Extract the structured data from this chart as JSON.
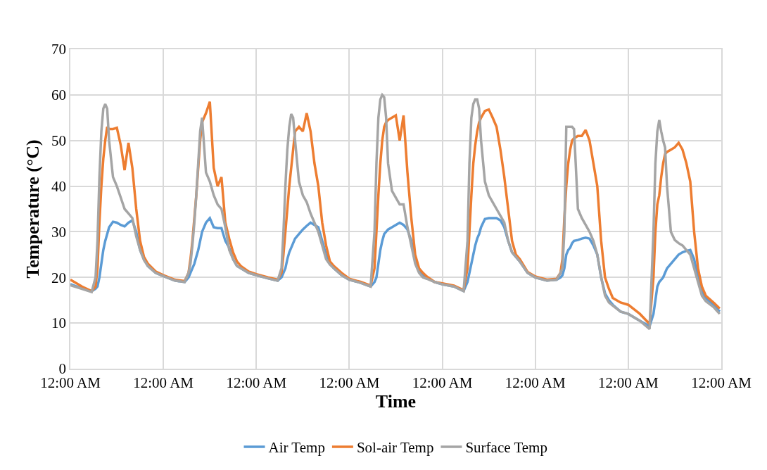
{
  "chart_data": {
    "type": "line",
    "xlabel": "Time",
    "ylabel": "Temperature (°C)",
    "x": [
      "--01-01T00:00",
      "--01-01T03:00",
      "--01-01T05:30",
      "--01-01T06:30",
      "--01-01T07:00",
      "--01-01T07:30",
      "--01-01T08:00",
      "--01-01T08:30",
      "--01-01T09:00",
      "--01-01T09:30",
      "--01-01T10:00",
      "--01-01T11:00",
      "--01-01T12:00",
      "--01-01T13:00",
      "--01-01T14:00",
      "--01-01T15:00",
      "--01-01T16:00",
      "--01-01T17:00",
      "--01-01T18:00",
      "--01-01T19:00",
      "--01-01T20:00",
      "--01-01T22:00",
      "--01-02T00:00",
      "--01-02T03:00",
      "--01-02T05:30",
      "--01-02T06:30",
      "--01-02T07:00",
      "--01-02T07:30",
      "--01-02T08:00",
      "--01-02T08:30",
      "--01-02T09:00",
      "--01-02T09:30",
      "--01-02T10:00",
      "--01-02T11:00",
      "--01-02T12:00",
      "--01-02T13:00",
      "--01-02T14:00",
      "--01-02T15:00",
      "--01-02T16:00",
      "--01-02T17:00",
      "--01-02T18:00",
      "--01-02T19:00",
      "--01-02T20:00",
      "--01-02T22:00",
      "--01-03T00:00",
      "--01-03T03:00",
      "--01-03T05:30",
      "--01-03T06:30",
      "--01-03T07:00",
      "--01-03T07:30",
      "--01-03T08:00",
      "--01-03T08:30",
      "--01-03T09:00",
      "--01-03T09:30",
      "--01-03T10:00",
      "--01-03T11:00",
      "--01-03T12:00",
      "--01-03T13:00",
      "--01-03T14:00",
      "--01-03T15:00",
      "--01-03T16:00",
      "--01-03T17:00",
      "--01-03T18:00",
      "--01-03T19:00",
      "--01-03T20:00",
      "--01-03T22:00",
      "--01-04T00:00",
      "--01-04T03:00",
      "--01-04T05:30",
      "--01-04T06:30",
      "--01-04T07:00",
      "--01-04T07:30",
      "--01-04T08:00",
      "--01-04T08:30",
      "--01-04T09:00",
      "--01-04T09:30",
      "--01-04T10:00",
      "--01-04T11:00",
      "--01-04T12:00",
      "--01-04T13:00",
      "--01-04T14:00",
      "--01-04T15:00",
      "--01-04T16:00",
      "--01-04T17:00",
      "--01-04T18:00",
      "--01-04T19:00",
      "--01-04T20:00",
      "--01-04T22:00",
      "--01-05T00:00",
      "--01-05T03:00",
      "--01-05T05:30",
      "--01-05T06:30",
      "--01-05T07:00",
      "--01-05T07:30",
      "--01-05T08:00",
      "--01-05T08:30",
      "--01-05T09:00",
      "--01-05T09:30",
      "--01-05T10:00",
      "--01-05T11:00",
      "--01-05T12:00",
      "--01-05T13:00",
      "--01-05T14:00",
      "--01-05T15:00",
      "--01-05T16:00",
      "--01-05T17:00",
      "--01-05T18:00",
      "--01-05T19:00",
      "--01-05T20:00",
      "--01-05T22:00",
      "--01-06T00:00",
      "--01-06T03:00",
      "--01-06T05:30",
      "--01-06T06:30",
      "--01-06T07:00",
      "--01-06T07:30",
      "--01-06T08:00",
      "--01-06T08:30",
      "--01-06T09:00",
      "--01-06T09:30",
      "--01-06T10:00",
      "--01-06T11:00",
      "--01-06T12:00",
      "--01-06T13:00",
      "--01-06T14:00",
      "--01-06T15:00",
      "--01-06T16:00",
      "--01-06T17:00",
      "--01-06T18:00",
      "--01-06T19:00",
      "--01-06T20:00",
      "--01-06T22:00",
      "--01-07T00:00",
      "--01-07T03:00",
      "--01-07T05:30",
      "--01-07T06:30",
      "--01-07T07:00",
      "--01-07T07:30",
      "--01-07T08:00",
      "--01-07T08:30",
      "--01-07T09:00",
      "--01-07T09:30",
      "--01-07T10:00",
      "--01-07T11:00",
      "--01-07T12:00",
      "--01-07T13:00",
      "--01-07T14:00",
      "--01-07T15:00",
      "--01-07T16:00",
      "--01-07T17:00",
      "--01-07T18:00",
      "--01-07T19:00",
      "--01-07T20:00",
      "--01-07T22:00",
      "--01-07T23:36"
    ],
    "series": [
      {
        "name": "Air Temp",
        "color": "#5b9bd5",
        "values": [
          18.5,
          17.6,
          17,
          17.5,
          18,
          20,
          23,
          26,
          28,
          29.5,
          31,
          32.2,
          32,
          31.5,
          31.2,
          32,
          32.5,
          30,
          26,
          24,
          22.5,
          21,
          20.3,
          19.3,
          19,
          20,
          21,
          22,
          23,
          24.5,
          26,
          28,
          30,
          32,
          33,
          31,
          30.8,
          30.8,
          28,
          26.5,
          24,
          22.5,
          22,
          21,
          20.5,
          19.8,
          19.3,
          20,
          21,
          22,
          24,
          25.5,
          26.5,
          27.5,
          28.5,
          29.5,
          30.5,
          31.3,
          32,
          31.5,
          31,
          28,
          25,
          23,
          22,
          20.5,
          19.5,
          18.8,
          18,
          19,
          20,
          23,
          26,
          28,
          29.5,
          30,
          30.5,
          31,
          31.5,
          32,
          31.5,
          30.5,
          28,
          24,
          21.5,
          20.5,
          20,
          19,
          18.5,
          18,
          17,
          19,
          21,
          23,
          25,
          27,
          28.5,
          29.5,
          31,
          32.8,
          33,
          33,
          33,
          32.5,
          31,
          28,
          25.5,
          24.5,
          23.5,
          21,
          20,
          19.3,
          19.5,
          20,
          20.5,
          22,
          25,
          26,
          26.5,
          27.5,
          28,
          28.2,
          28.5,
          28.7,
          28.5,
          27,
          25,
          20,
          16.5,
          15,
          14,
          12.5,
          12,
          10.5,
          9.3,
          12,
          15,
          18,
          19,
          19.5,
          20,
          21,
          22,
          23,
          24,
          25,
          25.5,
          25.8,
          26,
          24,
          20,
          17,
          15.5,
          14,
          12.5
        ]
      },
      {
        "name": "Sol-air Temp",
        "color": "#ed7d31",
        "values": [
          19.5,
          18,
          17,
          18,
          22,
          32,
          40,
          46,
          50,
          53,
          52.5,
          52.5,
          52.8,
          49,
          43.5,
          49.5,
          44,
          35,
          28,
          24.5,
          23,
          21.3,
          20.5,
          19.5,
          19.2,
          21,
          24,
          28,
          33,
          38,
          44,
          50,
          54,
          56,
          58.5,
          44,
          40,
          42,
          32,
          28.5,
          25.5,
          23.5,
          22.5,
          21.3,
          20.7,
          20,
          19.5,
          21,
          25,
          30,
          35,
          40,
          44,
          48,
          52,
          53,
          52,
          56,
          52,
          45,
          40,
          32,
          27,
          23.5,
          22.5,
          21,
          19.7,
          19,
          18.2,
          22,
          30,
          38,
          45,
          50,
          53,
          54,
          54.5,
          55,
          55.5,
          50,
          55.5,
          43,
          33,
          25,
          22,
          21,
          20.2,
          19,
          18.7,
          18.2,
          17.2,
          22,
          30,
          38,
          45,
          49,
          52,
          54,
          55,
          56.5,
          56.8,
          55,
          53,
          48,
          42,
          35,
          28,
          25,
          24,
          21.2,
          20.2,
          19.5,
          19.7,
          21,
          24,
          33,
          40,
          45,
          48,
          50,
          50.5,
          51,
          51,
          52.3,
          50,
          45,
          40,
          28,
          20,
          17.5,
          15.5,
          14.5,
          14,
          12,
          9.8,
          20,
          30,
          36,
          38,
          42,
          45,
          47,
          47.5,
          48,
          48.5,
          49.5,
          48,
          45,
          41,
          30,
          22,
          18,
          16,
          14.5,
          13.2
        ]
      },
      {
        "name": "Surface Temp",
        "color": "#a5a5a5",
        "values": [
          18.3,
          17.5,
          16.8,
          20,
          28,
          42,
          52,
          57,
          58,
          57,
          50,
          42,
          40,
          37.5,
          35,
          34,
          33,
          29,
          26,
          23.8,
          22.5,
          21,
          20.3,
          19.3,
          19,
          21,
          23,
          27,
          32,
          38,
          45,
          52,
          55,
          43,
          41,
          38,
          36,
          35,
          31,
          26,
          24,
          22.5,
          22,
          21,
          20.5,
          19.8,
          19.3,
          22,
          30,
          40,
          48,
          53,
          55.8,
          55,
          50,
          41,
          38,
          36.5,
          34,
          32,
          30,
          27,
          24,
          22.8,
          22,
          20.5,
          19.5,
          18.8,
          18,
          30,
          45,
          55,
          59,
          60,
          59.5,
          55,
          45,
          39,
          37.5,
          36,
          36,
          31,
          27,
          23,
          21,
          20,
          19.7,
          19,
          18.5,
          18,
          17,
          28,
          45,
          55,
          58,
          59,
          59,
          57,
          50,
          41,
          38,
          36.5,
          35,
          33.5,
          32,
          28,
          25.5,
          24.5,
          23.5,
          21,
          20,
          19.3,
          19.5,
          21,
          22,
          30,
          53,
          53,
          53,
          53,
          52.5,
          35,
          33,
          31.5,
          30,
          28,
          25,
          20,
          16,
          14.5,
          13.8,
          12.5,
          12,
          10.5,
          8.7,
          30,
          45,
          52,
          54.5,
          52,
          50,
          48.5,
          40,
          30,
          28.2,
          27.5,
          27,
          26,
          25,
          22,
          19,
          16,
          14.8,
          13.5,
          12
        ]
      }
    ],
    "xlim": [
      "--01-01T00:00",
      "--01-08T00:00"
    ],
    "xticks": [
      {
        "value": "--01-01T00:00",
        "label": "12:00 AM"
      },
      {
        "value": "--01-02T00:00",
        "label": "12:00 AM"
      },
      {
        "value": "--01-03T00:00",
        "label": "12:00 AM"
      },
      {
        "value": "--01-04T00:00",
        "label": "12:00 AM"
      },
      {
        "value": "--01-05T00:00",
        "label": "12:00 AM"
      },
      {
        "value": "--01-06T00:00",
        "label": "12:00 AM"
      },
      {
        "value": "--01-07T00:00",
        "label": "12:00 AM"
      },
      {
        "value": "--01-08T00:00",
        "label": "12:00 AM"
      }
    ],
    "ylim": [
      0,
      70
    ],
    "yticks": [
      0,
      10,
      20,
      30,
      40,
      50,
      60,
      70
    ],
    "grid": true,
    "legend": "bottom",
    "marker": "none",
    "line_style": "solid"
  }
}
